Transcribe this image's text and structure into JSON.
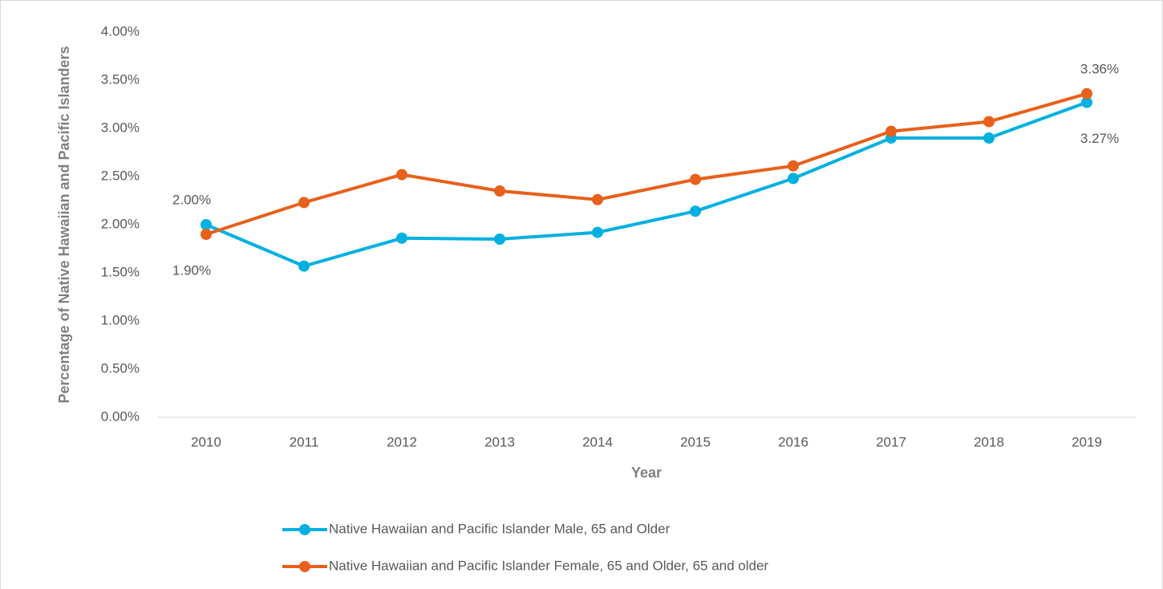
{
  "chart_data": {
    "type": "line",
    "x_label": "Year",
    "y_label": "Percentage of Native Hawaiian and Pacific Islanders",
    "categories": [
      "2010",
      "2011",
      "2012",
      "2013",
      "2014",
      "2015",
      "2016",
      "2017",
      "2018",
      "2019"
    ],
    "series": [
      {
        "name": "Native Hawaiian and Pacific Islander Male, 65 and Older",
        "color": "#00b0e0",
        "values": [
          2.0,
          1.57,
          1.86,
          1.85,
          1.92,
          2.14,
          2.48,
          2.9,
          2.9,
          3.27
        ],
        "value_labels": [
          "2.00%",
          null,
          null,
          null,
          null,
          null,
          null,
          null,
          null,
          "3.27%"
        ]
      },
      {
        "name": "Native Hawaiian and Pacific Islander Female, 65 and Older, 65 and older",
        "color": "#e8601c",
        "values": [
          1.9,
          2.23,
          2.52,
          2.35,
          2.26,
          2.47,
          2.61,
          2.97,
          3.07,
          3.36
        ],
        "value_labels": [
          "1.90%",
          null,
          null,
          null,
          null,
          null,
          null,
          null,
          null,
          "3.36%"
        ]
      }
    ],
    "ylim": [
      0,
      4
    ],
    "yticks": [
      {
        "value": 0,
        "label": "0.00%"
      },
      {
        "value": 0.5,
        "label": "0.50%"
      },
      {
        "value": 1,
        "label": "1.00%"
      },
      {
        "value": 1.5,
        "label": "1.50%"
      },
      {
        "value": 2,
        "label": "2.00%"
      },
      {
        "value": 2.5,
        "label": "2.50%"
      },
      {
        "value": 3,
        "label": "3.00%"
      },
      {
        "value": 3.5,
        "label": "3.50%"
      },
      {
        "value": 4,
        "label": "4.00%"
      }
    ],
    "grid": false,
    "legend": "bottom"
  }
}
